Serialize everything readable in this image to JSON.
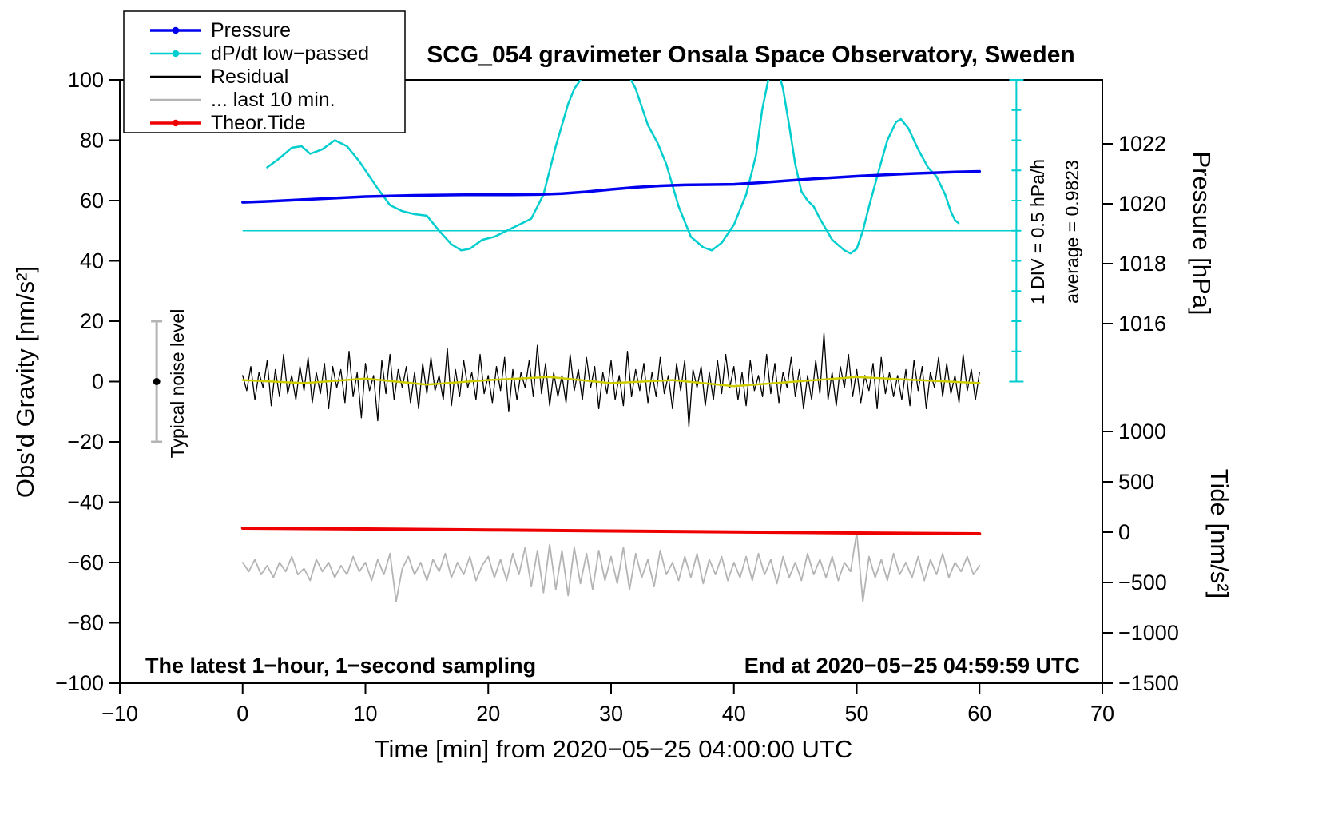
{
  "title": "SCG_054 gravimeter Onsala Space Observatory, Sweden",
  "annotations": {
    "sampling_note": "The latest 1−hour, 1−second sampling",
    "end_time": "End at 2020−05−25 04:59:59 UTC",
    "div_note": "1 DIV = 0.5 hPa/h",
    "average_note": "average = 0.9823",
    "noise_label": "Typical noise level"
  },
  "axes": {
    "x": {
      "label": "Time [min] from 2020−05−25 04:00:00 UTC",
      "min": -10,
      "max": 70,
      "ticks": [
        -10,
        0,
        10,
        20,
        30,
        40,
        50,
        60,
        70
      ]
    },
    "y_left": {
      "label": "Obs'd Gravity [nm/s²]",
      "min": -100,
      "max": 100,
      "ticks": [
        -100,
        -80,
        -60,
        -40,
        -20,
        0,
        20,
        40,
        60,
        80,
        100
      ]
    },
    "y_right_pressure": {
      "label": "Pressure [hPa]",
      "ticks": [
        1016,
        1018,
        1020,
        1022
      ]
    },
    "y_right_tide": {
      "label": "Tide [nm/s²]",
      "ticks": [
        -1500,
        -1000,
        -500,
        0,
        500,
        1000
      ]
    }
  },
  "legend": [
    {
      "series_id": "pressure",
      "label": "Pressure",
      "color": "#0000ee",
      "marker": true
    },
    {
      "series_id": "dpdt",
      "label": "dP/dt low−passed",
      "color": "#00cdcd",
      "marker": true
    },
    {
      "series_id": "residual",
      "label": "Residual",
      "color": "#000000",
      "marker": false
    },
    {
      "series_id": "last10",
      "label": "... last 10 min.",
      "color": "#b4b4b4",
      "marker": false
    },
    {
      "series_id": "tide",
      "label": "Theor.Tide",
      "color": "#ee0000",
      "marker": true
    }
  ],
  "colors": {
    "pressure": "#0000ee",
    "dpdt": "#00cdcd",
    "residual": "#000000",
    "residual_smooth": "#cdcd00",
    "last10": "#b4b4b4",
    "tide": "#ee0000",
    "frame": "#000000"
  },
  "chart_data": {
    "type": "line",
    "x_units": "minutes from 2020-05-25 04:00:00 UTC",
    "series": [
      {
        "id": "pressure",
        "name": "Pressure",
        "axis": "pressure",
        "units": "hPa",
        "color": "#0000ee",
        "x_start": 0,
        "x_step": 2,
        "values": [
          1020.05,
          1020.08,
          1020.12,
          1020.16,
          1020.2,
          1020.24,
          1020.26,
          1020.28,
          1020.29,
          1020.3,
          1020.3,
          1020.3,
          1020.31,
          1020.34,
          1020.4,
          1020.48,
          1020.55,
          1020.6,
          1020.63,
          1020.64,
          1020.65,
          1020.7,
          1020.76,
          1020.82,
          1020.87,
          1020.92,
          1020.96,
          1021.0,
          1021.03,
          1021.06,
          1021.08
        ]
      },
      {
        "id": "dpdt",
        "name": "dP/dt low−passed",
        "axis": "gravity",
        "units": "plot units; 1 DIV (10 units) = 0.5 hPa/h, level 50 = average 0.9823 hPa/h",
        "color": "#00cdcd",
        "x": [
          2,
          3,
          4,
          4.8,
          5.5,
          6.5,
          7.5,
          8.5,
          9.5,
          11,
          12,
          13,
          14,
          15,
          16,
          17,
          17.8,
          18.5,
          19.5,
          20.5,
          21.5,
          22.5,
          23.5,
          24.5,
          25.5,
          26.5,
          27,
          27.5,
          28,
          29,
          30,
          31,
          32,
          33,
          33.8,
          34.5,
          35.5,
          36.5,
          37.5,
          38.2,
          39,
          40,
          41,
          41.8,
          42.3,
          42.8,
          43.2,
          43.6,
          44,
          44.5,
          45,
          45.5,
          46,
          46.5,
          47,
          48,
          49,
          49.5,
          50,
          50.5,
          51,
          51.8,
          52.5,
          53.2,
          53.6,
          54.2,
          55,
          55.8,
          56.5,
          57.2,
          57.7,
          58,
          58.3
        ],
        "values": [
          71,
          74,
          77.5,
          78,
          75.5,
          77,
          80,
          78,
          73,
          64,
          58.5,
          56.5,
          55.5,
          55,
          50,
          45.5,
          43.5,
          44,
          47,
          48,
          50,
          52,
          54,
          62,
          78,
          92,
          97,
          100,
          103,
          107,
          108,
          105,
          97,
          85,
          79,
          72,
          58,
          48,
          44.5,
          43.5,
          46,
          52,
          62,
          75,
          90,
          100,
          105,
          103,
          97,
          85,
          72,
          63,
          60,
          58,
          54,
          47,
          43.5,
          42.5,
          44,
          50,
          58,
          70,
          80,
          86,
          87,
          84,
          77,
          71,
          68,
          62,
          56,
          53.5,
          52.5
        ]
      },
      {
        "id": "residual",
        "name": "Residual",
        "axis": "gravity",
        "units": "nm/s²",
        "color": "#000000",
        "x_start": 0,
        "x_step": 0.33333,
        "values": [
          2,
          -3,
          5,
          -6,
          3,
          -2,
          7,
          -8,
          4,
          -5,
          9,
          -4,
          2,
          -6,
          5,
          -3,
          8,
          -7,
          3,
          -4,
          6,
          -9,
          5,
          -2,
          4,
          -7,
          10,
          -5,
          3,
          -12,
          6,
          -3,
          2,
          -13,
          7,
          -4,
          9,
          -6,
          4,
          -2,
          5,
          -7,
          3,
          -9,
          6,
          -4,
          8,
          -3,
          2,
          -6,
          11,
          -8,
          4,
          -5,
          7,
          -2,
          3,
          -6,
          9,
          -4,
          2,
          -7,
          5,
          -3,
          8,
          -10,
          4,
          -6,
          3,
          -2,
          7,
          -5,
          12,
          -4,
          6,
          -8,
          3,
          -5,
          2,
          -7,
          9,
          -3,
          4,
          -6,
          8,
          -2,
          5,
          -9,
          3,
          -4,
          7,
          -6,
          2,
          -8,
          10,
          -5,
          4,
          -3,
          6,
          -7,
          3,
          -5,
          8,
          -4,
          2,
          -9,
          6,
          -3,
          7,
          -15,
          4,
          -2,
          5,
          -8,
          3,
          -6,
          7,
          -4,
          9,
          -2,
          5,
          -6,
          3,
          -8,
          7,
          -3,
          2,
          -5,
          9,
          -4,
          6,
          -7,
          3,
          -2,
          8,
          -5,
          4,
          -9,
          2,
          -6,
          7,
          -4,
          16,
          -6,
          3,
          -8,
          5,
          -2,
          9,
          -5,
          4,
          -7,
          2,
          -3,
          6,
          -9,
          8,
          -4,
          3,
          -5,
          2,
          -6,
          4,
          -8,
          7,
          -3,
          5,
          -9,
          3,
          -2,
          8,
          -5,
          6,
          -4,
          2,
          -7,
          9,
          -3,
          4,
          -6,
          3
        ]
      },
      {
        "id": "residual_smooth",
        "name": "Residual smoothed",
        "axis": "gravity",
        "units": "nm/s²",
        "color": "#cdcd00",
        "x_start": 0,
        "x_step": 5,
        "values": [
          0.5,
          -0.5,
          1,
          -1,
          0.5,
          1.5,
          -0.5,
          0.5,
          -1.5,
          0,
          1.5,
          0.5,
          -0.5
        ]
      },
      {
        "id": "last10",
        "name": "... last 10 min.",
        "axis": "gravity",
        "units": "nm/s² (offset display)",
        "color": "#b4b4b4",
        "x_start": 0,
        "x_step": 0.5,
        "values": [
          -60,
          -63,
          -59,
          -64,
          -61,
          -65,
          -60,
          -63,
          -58,
          -64,
          -62,
          -66,
          -59,
          -63,
          -60,
          -65,
          -61,
          -64,
          -58,
          -63,
          -60,
          -66,
          -59,
          -64,
          -57,
          -73,
          -62,
          -58,
          -64,
          -60,
          -66,
          -59,
          -63,
          -57,
          -65,
          -60,
          -64,
          -58,
          -66,
          -61,
          -58,
          -65,
          -59,
          -66,
          -57,
          -64,
          -55,
          -68,
          -56,
          -70,
          -54,
          -69,
          -56,
          -71,
          -55,
          -67,
          -57,
          -69,
          -56,
          -66,
          -58,
          -67,
          -55,
          -69,
          -57,
          -65,
          -59,
          -68,
          -56,
          -64,
          -60,
          -66,
          -58,
          -65,
          -57,
          -67,
          -59,
          -64,
          -58,
          -66,
          -60,
          -65,
          -58,
          -66,
          -57,
          -64,
          -59,
          -67,
          -58,
          -65,
          -60,
          -66,
          -57,
          -64,
          -59,
          -65,
          -58,
          -66,
          -60,
          -63,
          -50,
          -73,
          -58,
          -65,
          -59,
          -66,
          -57,
          -64,
          -60,
          -65,
          -58,
          -66,
          -59,
          -64,
          -57,
          -65,
          -60,
          -63,
          -58,
          -64,
          -61
        ]
      },
      {
        "id": "tide",
        "name": "Theor.Tide",
        "axis": "tide",
        "units": "nm/s²",
        "color": "#ee0000",
        "x_start": 0,
        "x_step": 10,
        "values": [
          40,
          32,
          22,
          12,
          2,
          -8,
          -16
        ]
      }
    ],
    "average_line": {
      "value_plot_units": 50,
      "x_from": 0,
      "x_to": 63,
      "note": "average = 0.9823"
    },
    "scalebar": {
      "x": 63,
      "from": 0,
      "to": 100,
      "div_plot_units": 10,
      "note": "1 DIV = 0.5 hPa/h"
    },
    "noise_bar": {
      "x": -7,
      "center": 0,
      "half_range": 20,
      "label": "Typical noise level"
    }
  }
}
